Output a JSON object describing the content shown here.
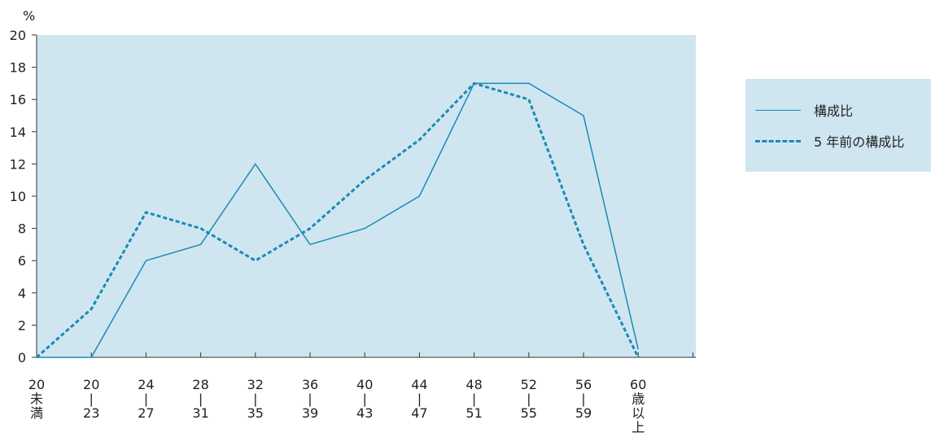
{
  "chart_data": {
    "type": "line",
    "ylabel": "%",
    "ylim": [
      0,
      20
    ],
    "yticks": [
      "0",
      "2",
      "4",
      "6",
      "8",
      "10",
      "12",
      "14",
      "16",
      "18",
      "20"
    ],
    "categories": [
      [
        "20",
        "未",
        "満"
      ],
      [
        "20",
        "|",
        "23"
      ],
      [
        "24",
        "|",
        "27"
      ],
      [
        "28",
        "|",
        "31"
      ],
      [
        "32",
        "|",
        "35"
      ],
      [
        "36",
        "|",
        "39"
      ],
      [
        "40",
        "|",
        "43"
      ],
      [
        "44",
        "|",
        "47"
      ],
      [
        "48",
        "|",
        "51"
      ],
      [
        "52",
        "|",
        "55"
      ],
      [
        "56",
        "|",
        "59"
      ],
      [
        "60",
        "歳",
        "以",
        "上"
      ]
    ],
    "series": [
      {
        "name": "構成比",
        "style": "solid",
        "color": "#1b8ab5",
        "values": [
          0,
          0,
          6,
          7,
          12,
          7,
          8,
          10,
          17,
          17,
          15,
          0.5
        ]
      },
      {
        "name": "5 年前の構成比",
        "style": "dotted",
        "color": "#1b8ab5",
        "values": [
          0,
          3,
          9,
          8,
          6,
          8,
          11,
          13.5,
          17,
          16,
          7,
          0
        ]
      }
    ],
    "plot_background": "#cfe6f1",
    "grid": false,
    "legend_position": "right"
  }
}
